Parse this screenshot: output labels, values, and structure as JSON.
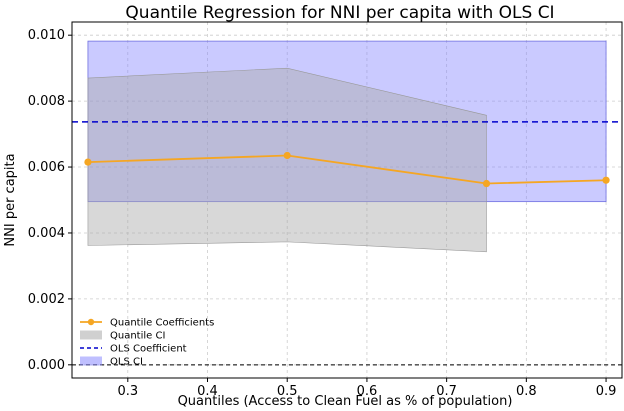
{
  "chart_data": {
    "type": "line",
    "title": "Quantile Regression for NNI per capita with OLS CI",
    "xlabel": "Quantiles (Access to Clean Fuel as % of population)",
    "ylabel": "NNI per capita",
    "xlim": [
      0.23,
      0.92
    ],
    "ylim": [
      -0.0004,
      0.0104
    ],
    "x_ticks": [
      0.3,
      0.4,
      0.5,
      0.6,
      0.7,
      0.8,
      0.9
    ],
    "x_tick_labels": [
      "0.3",
      "0.4",
      "0.5",
      "0.6",
      "0.7",
      "0.8",
      "0.9"
    ],
    "y_ticks": [
      0.0,
      0.002,
      0.004,
      0.006,
      0.008,
      0.01
    ],
    "y_tick_labels": [
      "0.000",
      "0.002",
      "0.004",
      "0.006",
      "0.008",
      "0.010"
    ],
    "grid": true,
    "legend_position": "lower-left",
    "quantile_coefficients": {
      "name": "Quantile Coefficients",
      "x": [
        0.25,
        0.5,
        0.75,
        0.9
      ],
      "y": [
        0.00615,
        0.00635,
        0.0055,
        0.0056
      ],
      "color": "#f5a623"
    },
    "quantile_ci": {
      "name": "Quantile CI",
      "x": [
        0.25,
        0.5,
        0.75
      ],
      "lower": [
        0.00362,
        0.00373,
        0.00343
      ],
      "upper": [
        0.0087,
        0.009,
        0.00757
      ],
      "color": "#a9a9a9"
    },
    "ols_coefficient": {
      "name": "OLS Coefficient",
      "value": 0.00737,
      "color": "#0000cc"
    },
    "ols_ci": {
      "name": "OLS CI",
      "x": [
        0.25,
        0.9
      ],
      "lower": 0.00495,
      "upper": 0.00982,
      "color": "#8080ff"
    },
    "zero_line": 0.0
  }
}
